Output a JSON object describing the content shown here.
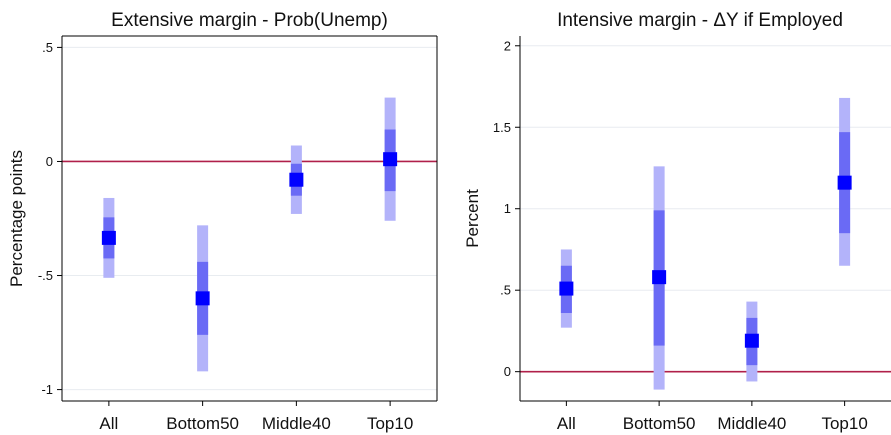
{
  "chart_data": [
    {
      "type": "errorbar",
      "title": "Extensive margin - Prob(Unemp)",
      "ylabel": "Percentage points",
      "xlabel": "",
      "categories": [
        "All",
        "Bottom50",
        "Middle40",
        "Top10"
      ],
      "ylim": [
        -1.05,
        0.55
      ],
      "yticks": [
        -1,
        -0.5,
        0,
        0.5
      ],
      "ytick_labels": [
        "-1",
        "-.5",
        "0",
        ".5"
      ],
      "reference_line": 0,
      "grid": true,
      "points": [
        {
          "category": "All",
          "estimate": -0.335,
          "ci_inner": [
            -0.425,
            -0.245
          ],
          "ci_outer": [
            -0.51,
            -0.16
          ]
        },
        {
          "category": "Bottom50",
          "estimate": -0.6,
          "ci_inner": [
            -0.76,
            -0.44
          ],
          "ci_outer": [
            -0.92,
            -0.28
          ]
        },
        {
          "category": "Middle40",
          "estimate": -0.08,
          "ci_inner": [
            -0.15,
            -0.01
          ],
          "ci_outer": [
            -0.23,
            0.07
          ]
        },
        {
          "category": "Top10",
          "estimate": 0.01,
          "ci_inner": [
            -0.13,
            0.14
          ],
          "ci_outer": [
            -0.26,
            0.28
          ]
        }
      ]
    },
    {
      "type": "errorbar",
      "title": "Intensive margin - ΔY if Employed",
      "ylabel": "Percent",
      "xlabel": "",
      "categories": [
        "All",
        "Bottom50",
        "Middle40",
        "Top10"
      ],
      "ylim": [
        -0.18,
        2.06
      ],
      "yticks": [
        0,
        0.5,
        1,
        1.5,
        2
      ],
      "ytick_labels": [
        "0",
        ".5",
        "1",
        "1.5",
        "2"
      ],
      "reference_line": 0,
      "grid": true,
      "points": [
        {
          "category": "All",
          "estimate": 0.51,
          "ci_inner": [
            0.36,
            0.65
          ],
          "ci_outer": [
            0.27,
            0.75
          ]
        },
        {
          "category": "Bottom50",
          "estimate": 0.58,
          "ci_inner": [
            0.16,
            0.99
          ],
          "ci_outer": [
            -0.11,
            1.26
          ]
        },
        {
          "category": "Middle40",
          "estimate": 0.19,
          "ci_inner": [
            0.04,
            0.33
          ],
          "ci_outer": [
            -0.06,
            0.43
          ]
        },
        {
          "category": "Top10",
          "estimate": 1.16,
          "ci_inner": [
            0.85,
            1.47
          ],
          "ci_outer": [
            0.65,
            1.68
          ]
        }
      ]
    }
  ],
  "colors": {
    "estimate": "#0000ff",
    "ci_inner": "#6a6af5",
    "ci_outer": "#b3b3fa",
    "reference_line": "#b0204a",
    "grid": "#e8ecf0",
    "axis": "#000000"
  }
}
